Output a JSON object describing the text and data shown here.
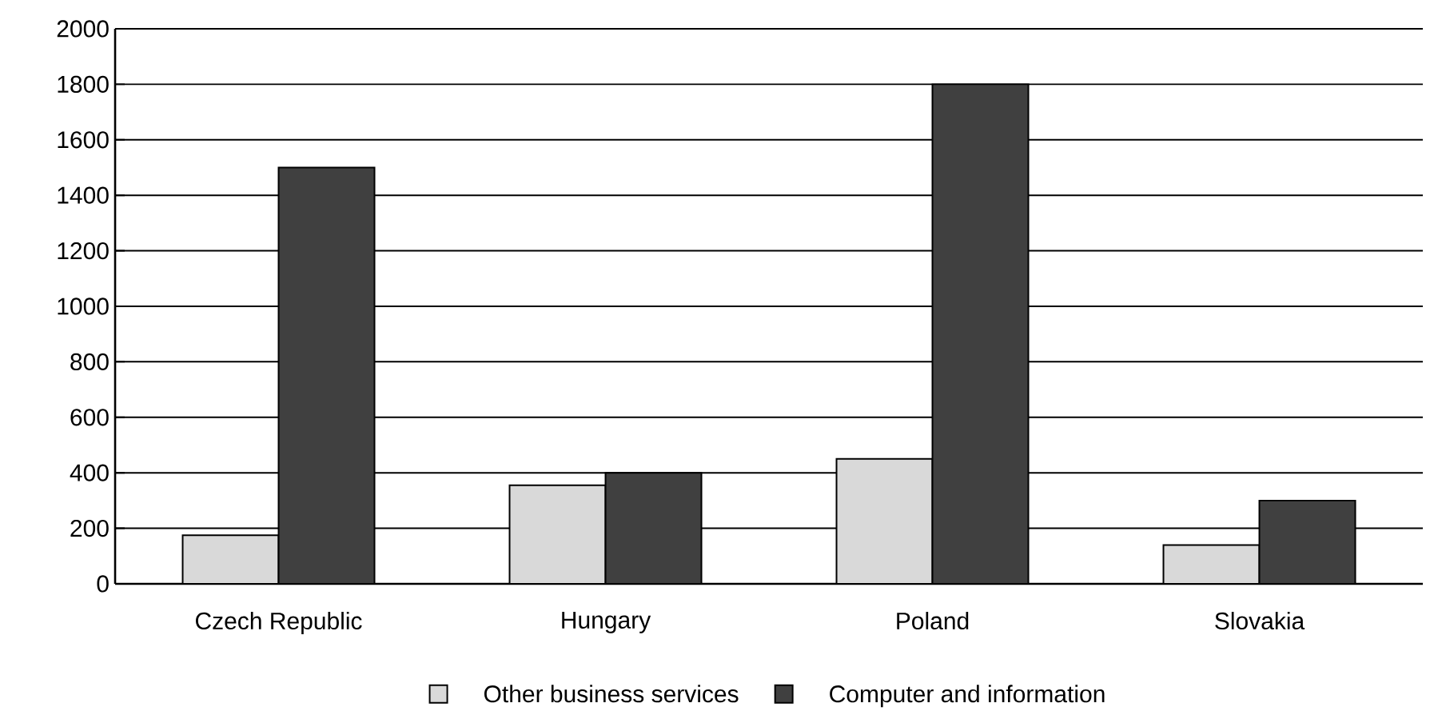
{
  "chart_data": {
    "type": "bar",
    "categories": [
      "Czech Republic",
      "Hungary",
      "Poland",
      "Slovakia"
    ],
    "series": [
      {
        "name": "Other business services",
        "color": "#d9d9d9",
        "values": [
          175,
          355,
          450,
          140
        ]
      },
      {
        "name": "Computer and information",
        "color": "#404040",
        "values": [
          1500,
          400,
          1800,
          300
        ]
      }
    ],
    "ylim": [
      0,
      2000
    ],
    "yticks": [
      0,
      200,
      400,
      600,
      800,
      1000,
      1200,
      1400,
      1600,
      1800,
      2000
    ],
    "grid": "y",
    "legend": "bottom"
  }
}
